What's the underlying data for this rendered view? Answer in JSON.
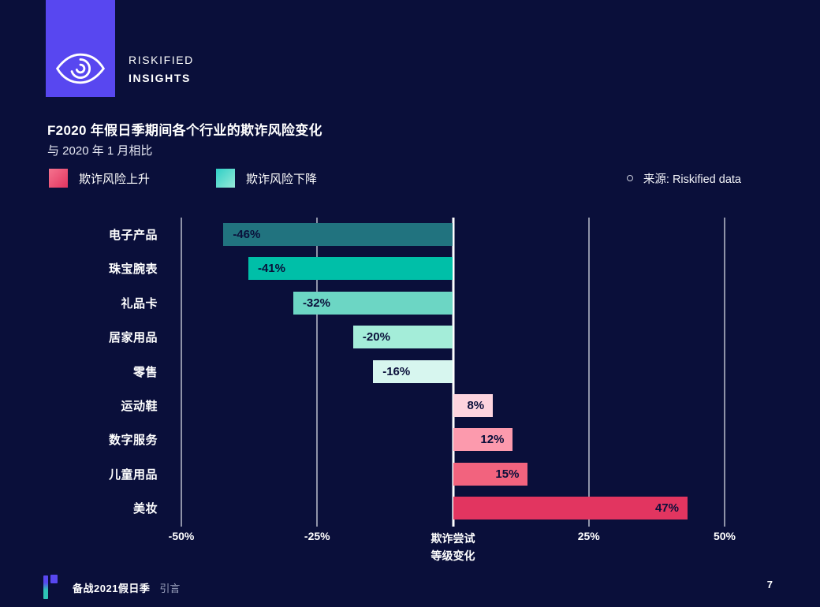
{
  "brand": {
    "line1": "RISKIFIED",
    "line2": "INSIGHTS"
  },
  "header": {
    "title": "F2020 年假日季期间各个行业的欺诈风险变化",
    "subtitle": "与 2020 年 1 月相比"
  },
  "legend": {
    "up_label": "欺诈风险上升",
    "down_label": "欺诈风险下降"
  },
  "source": {
    "label": "来源: Riskified data"
  },
  "colors": {
    "background": "#0a0f3a",
    "brand_purple": "#5847f0",
    "brand_teal": "#2ec4b6",
    "risk_up_accent": "#e23560",
    "risk_down_accent": "#00bfa8",
    "gridline": "#8f93a8",
    "zero_axis": "#ffffff",
    "bar_value_text": "#0a0f3a"
  },
  "chart_data": {
    "type": "bar",
    "orientation": "horizontal",
    "title": "F2020 年假日季期间各个行业的欺诈风险变化",
    "subtitle": "与 2020 年 1 月相比",
    "source": "来源: Riskified data",
    "categories": [
      "电子产品",
      "珠宝腕表",
      "礼品卡",
      "居家用品",
      "零售",
      "运动鞋",
      "数字服务",
      "儿童用品",
      "美妆"
    ],
    "values": [
      -46,
      -41,
      -32,
      -20,
      -16,
      8,
      12,
      15,
      47
    ],
    "value_labels": [
      "-46%",
      "-41%",
      "-32%",
      "-20%",
      "-16%",
      "8%",
      "12%",
      "15%",
      "47%"
    ],
    "bar_colors": [
      "#21737f",
      "#00bfa8",
      "#6cd6c4",
      "#a4edd9",
      "#d7f6ef",
      "#fdd4de",
      "#fc9aad",
      "#f2637e",
      "#e23560"
    ],
    "x_ticks": [
      "-50%",
      "-25%",
      "25%",
      "50%"
    ],
    "x_tick_values": [
      -50,
      -25,
      25,
      50
    ],
    "xlim": [
      -50,
      50
    ],
    "grid": true,
    "axis_title_line1": "欺诈尝试",
    "axis_title_line2": "等级变化",
    "legend_entries": [
      "欺诈风险上升",
      "欺诈风险下降"
    ],
    "legend_position": "top-left"
  },
  "footer": {
    "doc_title": "备战2021假日季",
    "section": "引言",
    "page": "7"
  }
}
